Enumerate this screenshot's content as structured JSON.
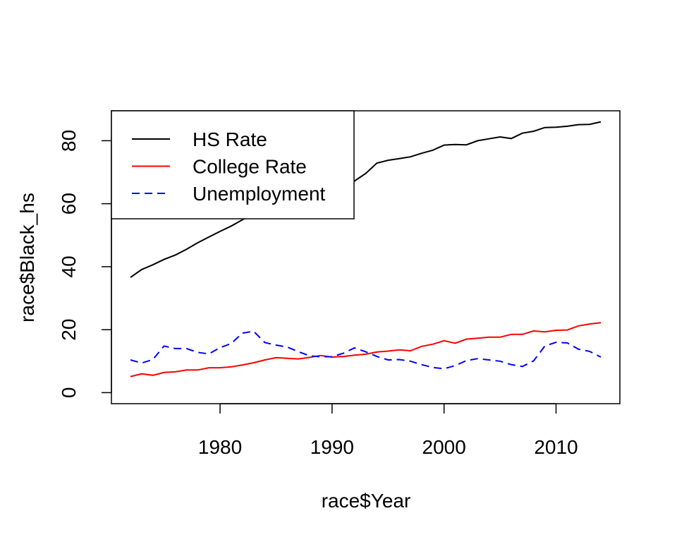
{
  "chart_data": {
    "type": "line",
    "title": "",
    "xlabel": "race$Year",
    "ylabel": "race$Black_hs",
    "xlim": [
      1970.3,
      2015.7
    ],
    "ylim": [
      -3.5,
      89.5
    ],
    "x_ticks": [
      1980,
      1990,
      2000,
      2010
    ],
    "y_ticks": [
      0,
      20,
      40,
      60,
      80
    ],
    "grid": false,
    "legend_position": "top-left",
    "x": [
      1972,
      1973,
      1974,
      1975,
      1976,
      1977,
      1978,
      1979,
      1980,
      1981,
      1982,
      1983,
      1984,
      1985,
      1986,
      1987,
      1988,
      1989,
      1990,
      1991,
      1992,
      1993,
      1994,
      1995,
      1996,
      1997,
      1998,
      1999,
      2000,
      2001,
      2002,
      2003,
      2004,
      2005,
      2006,
      2007,
      2008,
      2009,
      2010,
      2011,
      2012,
      2013,
      2014
    ],
    "series": [
      {
        "name": "HS Rate",
        "color": "#000000",
        "dash": "solid",
        "values": [
          36.6,
          39.1,
          40.6,
          42.3,
          43.7,
          45.5,
          47.6,
          49.4,
          51.2,
          52.9,
          54.9,
          56.8,
          58.6,
          59.9,
          61.5,
          62.8,
          63.4,
          64.1,
          65.6,
          66.5,
          67.2,
          69.6,
          72.9,
          73.8,
          74.3,
          74.9,
          76.0,
          77.0,
          78.6,
          78.8,
          78.7,
          80.0,
          80.6,
          81.2,
          80.7,
          82.4,
          83.0,
          84.2,
          84.3,
          84.6,
          85.1,
          85.2,
          86.0
        ]
      },
      {
        "name": "College Rate",
        "color": "#ff0000",
        "dash": "solid",
        "values": [
          5.1,
          6.0,
          5.5,
          6.4,
          6.6,
          7.2,
          7.2,
          7.9,
          7.9,
          8.2,
          8.8,
          9.5,
          10.4,
          11.1,
          10.9,
          10.7,
          11.2,
          11.8,
          11.3,
          11.5,
          11.9,
          12.2,
          12.9,
          13.2,
          13.6,
          13.3,
          14.7,
          15.4,
          16.5,
          15.7,
          17.0,
          17.3,
          17.6,
          17.6,
          18.5,
          18.5,
          19.6,
          19.3,
          19.8,
          19.9,
          21.2,
          21.8,
          22.2
        ]
      },
      {
        "name": "Unemployment",
        "color": "#0000ff",
        "dash": "dashed",
        "values": [
          10.4,
          9.4,
          10.5,
          14.8,
          14.0,
          14.0,
          12.8,
          12.3,
          14.3,
          15.6,
          18.9,
          19.5,
          15.9,
          15.1,
          14.5,
          13.0,
          11.7,
          11.4,
          11.4,
          12.5,
          14.2,
          13.0,
          11.5,
          10.4,
          10.5,
          10.0,
          8.9,
          8.0,
          7.6,
          8.6,
          10.2,
          10.8,
          10.4,
          10.0,
          8.9,
          8.3,
          10.1,
          14.8,
          16.0,
          15.8,
          13.8,
          13.1,
          11.3
        ]
      }
    ]
  }
}
